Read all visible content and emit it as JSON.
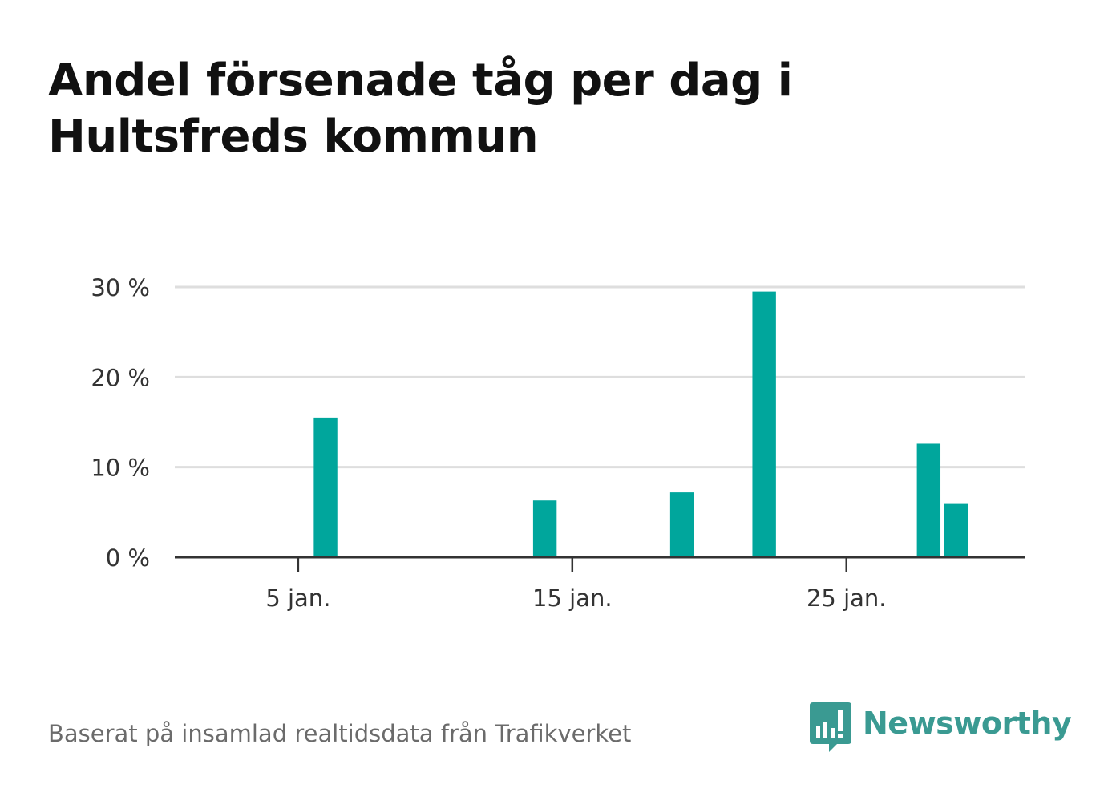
{
  "title": "Andel försenade tåg per dag i Hultsfreds kommun",
  "source": "Baserat på insamlad realtidsdata från Trafikverket",
  "brand": {
    "name": "Newsworthy",
    "icon": "bar-chart-speech-bubble-icon",
    "color": "#3a9a92"
  },
  "chart_data": {
    "type": "bar",
    "x_type": "date",
    "x_domain": [
      "2020-01-01",
      "2020-01-31"
    ],
    "x_ticks": [
      {
        "x": "2020-01-05",
        "label": "5 jan."
      },
      {
        "x": "2020-01-15",
        "label": "15 jan."
      },
      {
        "x": "2020-01-25",
        "label": "25 jan."
      }
    ],
    "y_ticks": [
      {
        "value": 0,
        "label": "0 %"
      },
      {
        "value": 10,
        "label": "10 %"
      },
      {
        "value": 20,
        "label": "20 %"
      },
      {
        "value": 30,
        "label": "30 %"
      }
    ],
    "ylim": [
      0,
      30
    ],
    "grid": true,
    "bar_color": "#00a69c",
    "series": [
      {
        "points": [
          {
            "x": "2020-01-06",
            "y": 15.5
          },
          {
            "x": "2020-01-14",
            "y": 6.3
          },
          {
            "x": "2020-01-19",
            "y": 7.2
          },
          {
            "x": "2020-01-22",
            "y": 29.5
          },
          {
            "x": "2020-01-28",
            "y": 12.6
          },
          {
            "x": "2020-01-29",
            "y": 6.0
          }
        ]
      }
    ]
  }
}
